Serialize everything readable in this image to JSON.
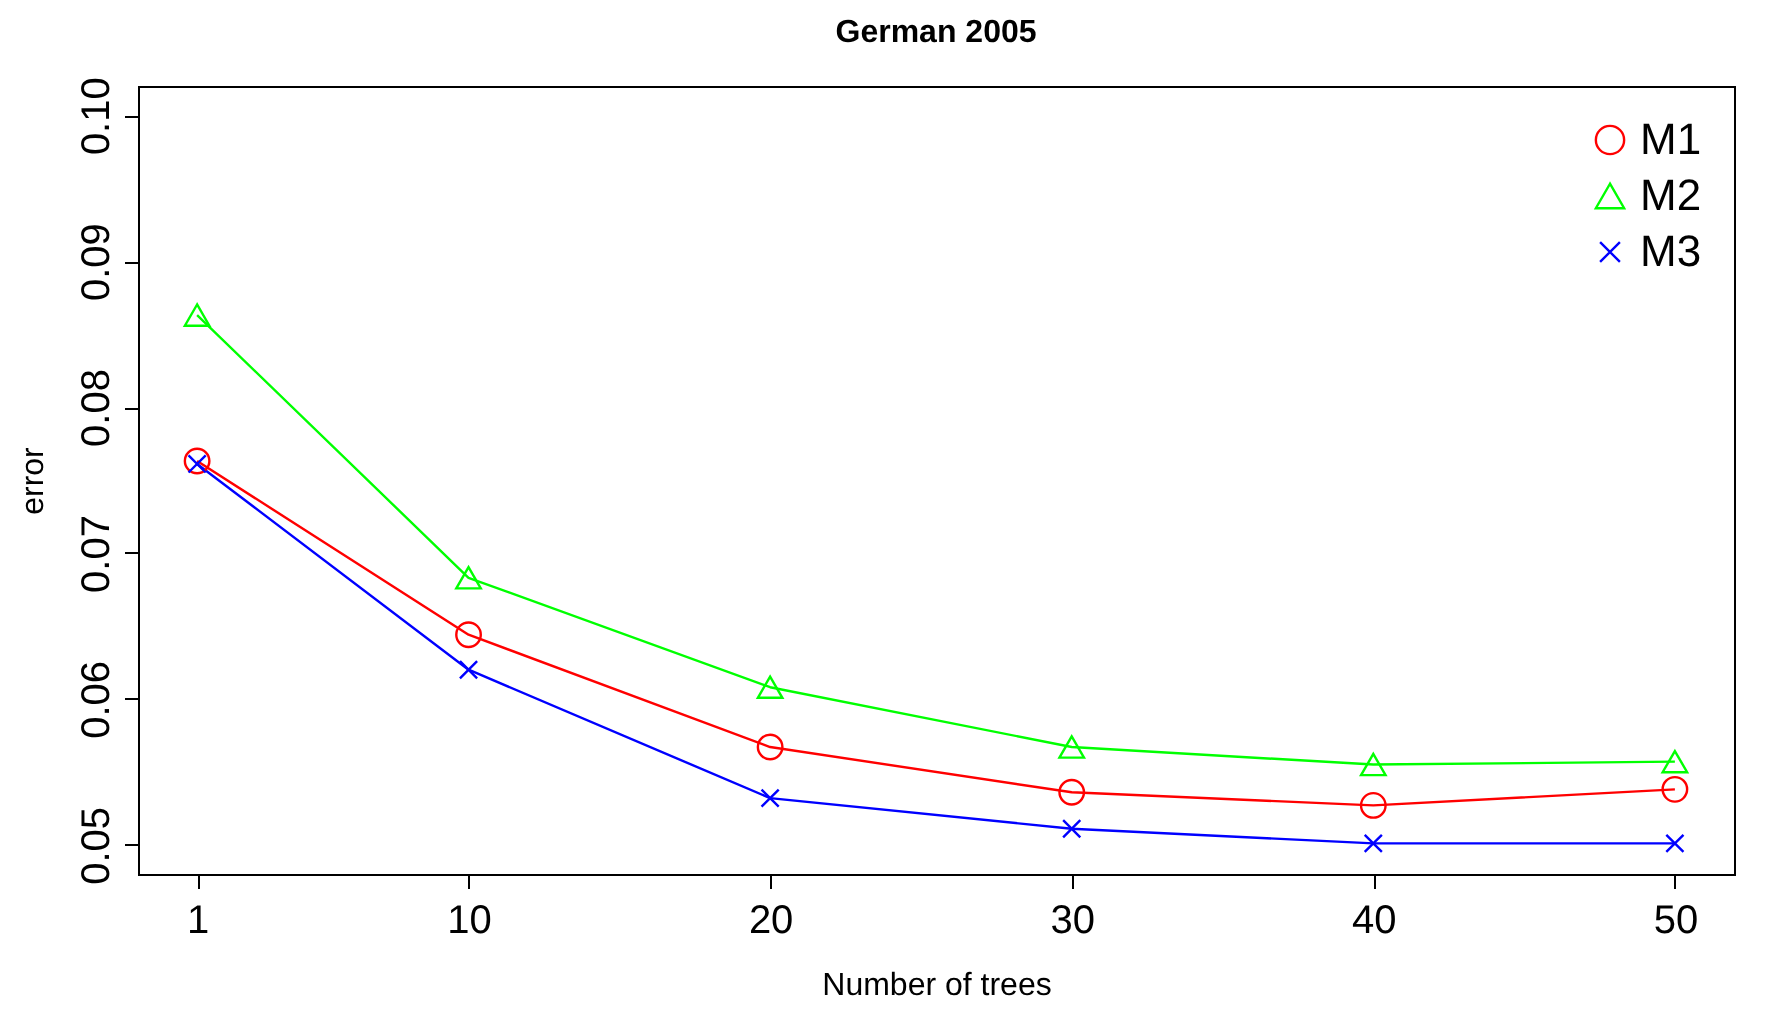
{
  "chart_data": {
    "type": "line",
    "title": "German 2005",
    "xlabel": "Number of trees",
    "ylabel": "error",
    "x": [
      1,
      10,
      20,
      30,
      40,
      50
    ],
    "series": [
      {
        "name": "M1",
        "color": "#ff0000",
        "marker": "circle",
        "values": [
          0.0763,
          0.0644,
          0.0567,
          0.0536,
          0.0527,
          0.0538
        ]
      },
      {
        "name": "M2",
        "color": "#00ff00",
        "marker": "triangle",
        "values": [
          0.0863,
          0.0683,
          0.0608,
          0.0567,
          0.0555,
          0.0557
        ]
      },
      {
        "name": "M3",
        "color": "#0000ff",
        "marker": "cross",
        "values": [
          0.0761,
          0.062,
          0.0532,
          0.0511,
          0.0501,
          0.0501
        ]
      }
    ],
    "xlim": [
      -0.96,
      51.96
    ],
    "xticks": [
      1,
      10,
      20,
      30,
      40,
      50
    ],
    "ylim": [
      0.048,
      0.102
    ],
    "yticks": [
      {
        "value": 0.05,
        "label": "0.05"
      },
      {
        "value": 0.06,
        "label": "0.06"
      },
      {
        "value": 0.07,
        "label": "0.07"
      },
      {
        "value": 0.08,
        "label": "0.08"
      },
      {
        "value": 0.09,
        "label": "0.09"
      },
      {
        "value": 0.1,
        "label": "0.10"
      }
    ],
    "grid": false,
    "legend": "top right",
    "line_style": "solid"
  }
}
